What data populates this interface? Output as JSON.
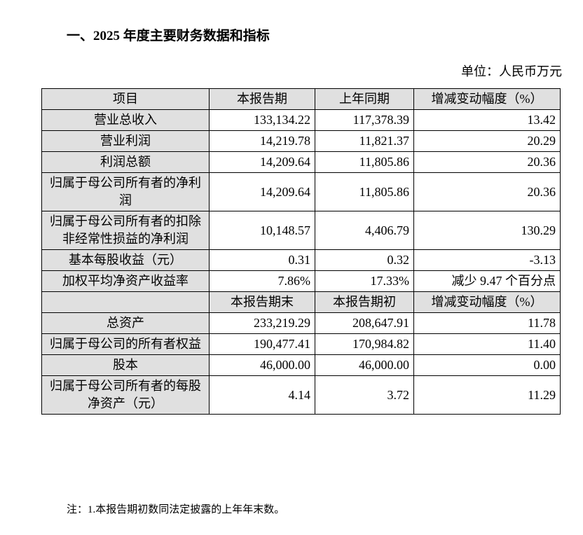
{
  "title": "一、2025 年度主要财务数据和指标",
  "unit": "单位：人民币万元",
  "header1": [
    "项目",
    "本报告期",
    "上年同期",
    "增减变动幅度（%）"
  ],
  "rows1": [
    {
      "label": "营业总收入",
      "values": [
        "133,134.22",
        "117,378.39",
        "13.42"
      ]
    },
    {
      "label": "营业利润",
      "values": [
        "14,219.78",
        "11,821.37",
        "20.29"
      ]
    },
    {
      "label": "利润总额",
      "values": [
        "14,209.64",
        "11,805.86",
        "20.36"
      ]
    },
    {
      "label": "归属于母公司所有者的净利润",
      "values": [
        "14,209.64",
        "11,805.86",
        "20.36"
      ]
    },
    {
      "label": "归属于母公司所有者的扣除非经常性损益的净利润",
      "values": [
        "10,148.57",
        "4,406.79",
        "130.29"
      ]
    },
    {
      "label": "基本每股收益（元）",
      "values": [
        "0.31",
        "0.32",
        "-3.13"
      ]
    },
    {
      "label": "加权平均净资产收益率",
      "values": [
        "7.86%",
        "17.33%",
        "减少 9.47 个百分点"
      ]
    }
  ],
  "header2": [
    "",
    "本报告期末",
    "本报告期初",
    "增减变动幅度（%）"
  ],
  "rows2": [
    {
      "label": "总资产",
      "values": [
        "233,219.29",
        "208,647.91",
        "11.78"
      ]
    },
    {
      "label": "归属于母公司的所有者权益",
      "values": [
        "190,477.41",
        "170,984.82",
        "11.40"
      ]
    },
    {
      "label": "股本",
      "values": [
        "46,000.00",
        "46,000.00",
        "0.00"
      ]
    },
    {
      "label": "归属于母公司所有者的每股净资产（元）",
      "values": [
        "4.14",
        "3.72",
        "11.29"
      ]
    }
  ],
  "note": "注：1.本报告期初数同法定披露的上年年末数。"
}
